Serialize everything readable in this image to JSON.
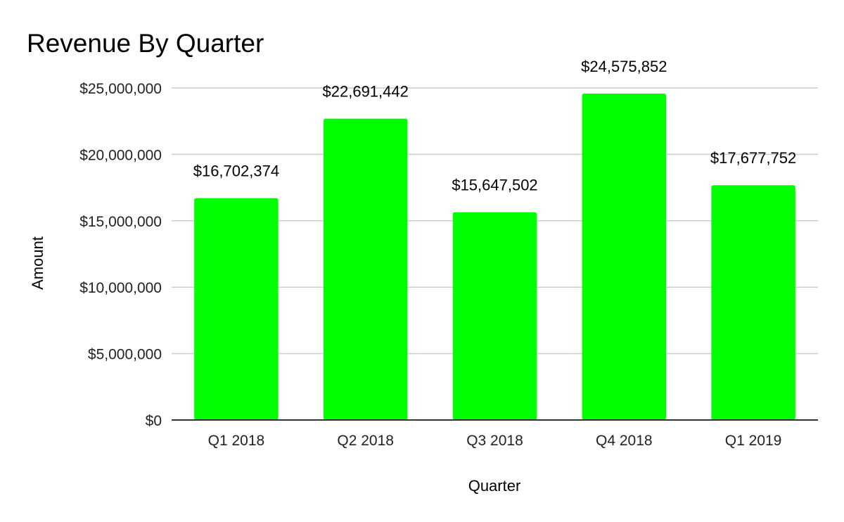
{
  "chart_data": {
    "type": "bar",
    "title": "Revenue By Quarter",
    "xlabel": "Quarter",
    "ylabel": "Amount",
    "categories": [
      "Q1 2018",
      "Q2 2018",
      "Q3 2018",
      "Q4 2018",
      "Q1 2019"
    ],
    "values": [
      16702374,
      22691442,
      15647502,
      24575852,
      17677752
    ],
    "data_labels": [
      "$16,702,374",
      "$22,691,442",
      "$15,647,502",
      "$24,575,852",
      "$17,677,752"
    ],
    "ylim": [
      0,
      25000000
    ],
    "yticks": [
      0,
      5000000,
      10000000,
      15000000,
      20000000,
      25000000
    ],
    "ytick_labels": [
      "$0",
      "$5,000,000",
      "$10,000,000",
      "$15,000,000",
      "$20,000,000",
      "$25,000,000"
    ],
    "grid": true,
    "legend": "none",
    "bar_color": "#00ff00"
  }
}
